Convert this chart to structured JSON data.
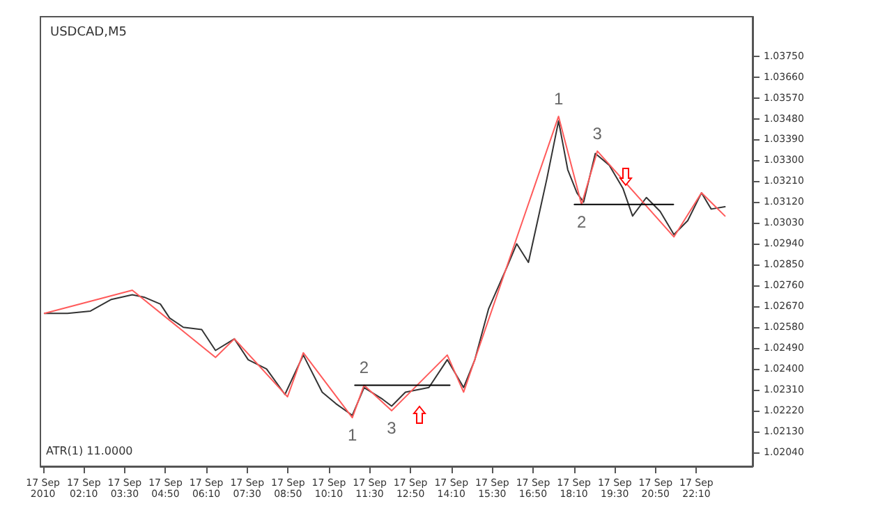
{
  "chart_data": {
    "type": "line",
    "title": "USDCAD,M5",
    "x": [
      "2010-09-17T00:53",
      "2010-09-17T01:38",
      "2010-09-17T02:23",
      "2010-09-17T03:04",
      "2010-09-17T03:45",
      "2010-09-17T04:08",
      "2010-09-17T04:40",
      "2010-09-17T04:58",
      "2010-09-17T05:25",
      "2010-09-17T06:01",
      "2010-09-17T06:28",
      "2010-09-17T07:05",
      "2010-09-17T07:32",
      "2010-09-17T08:08",
      "2010-09-17T08:44",
      "2010-09-17T09:20",
      "2010-09-17T09:57",
      "2010-09-17T10:24",
      "2010-09-17T10:56",
      "2010-09-17T11:19",
      "2010-09-17T11:55",
      "2010-09-17T12:13",
      "2010-09-17T12:40",
      "2010-09-17T13:26",
      "2010-09-17T14:02",
      "2010-09-17T14:34",
      "2010-09-17T14:56",
      "2010-09-17T15:23",
      "2010-09-17T15:59",
      "2010-09-17T16:18",
      "2010-09-17T16:41",
      "2010-09-17T17:03",
      "2010-09-17T17:17",
      "2010-09-17T17:40",
      "2010-09-17T17:58",
      "2010-09-17T18:16",
      "2010-09-17T18:29",
      "2010-09-17T18:52",
      "2010-09-17T19:19",
      "2010-09-17T19:46",
      "2010-09-17T20:05",
      "2010-09-17T20:32",
      "2010-09-17T20:59",
      "2010-09-17T21:26",
      "2010-09-17T21:53",
      "2010-09-17T22:20",
      "2010-09-17T22:39",
      "2010-09-17T23:06"
    ],
    "series": [
      {
        "color": "#333333",
        "values": [
          1.0264,
          1.0264,
          1.0265,
          1.027,
          1.0272,
          1.0271,
          1.0268,
          1.0262,
          1.0258,
          1.0257,
          1.0248,
          1.0253,
          1.0244,
          1.024,
          1.0229,
          1.0246,
          1.023,
          1.0225,
          1.022,
          1.0232,
          1.0227,
          1.0224,
          1.023,
          1.0232,
          1.0244,
          1.0232,
          1.0244,
          1.0266,
          1.0284,
          1.0294,
          1.0286,
          1.0308,
          1.0322,
          1.0347,
          1.0326,
          1.0316,
          1.0312,
          1.0333,
          1.0328,
          1.0318,
          1.0306,
          1.0314,
          1.0308,
          1.0298,
          1.0304,
          1.0316,
          1.0309,
          1.031
        ]
      },
      {
        "color": "#ff5a5a",
        "x": [
          "2010-09-17T00:53",
          "2010-09-17T03:45",
          "2010-09-17T06:28",
          "2010-09-17T07:05",
          "2010-09-17T08:49",
          "2010-09-17T09:20",
          "2010-09-17T10:56",
          "2010-09-17T11:19",
          "2010-09-17T12:13",
          "2010-09-17T14:02",
          "2010-09-17T14:34",
          "2010-09-17T17:40",
          "2010-09-17T18:25",
          "2010-09-17T18:56",
          "2010-09-17T21:26",
          "2010-09-17T22:20",
          "2010-09-17T23:06"
        ],
        "values": [
          1.0264,
          1.0274,
          1.0245,
          1.0253,
          1.0228,
          1.0247,
          1.0219,
          1.0233,
          1.0222,
          1.0246,
          1.023,
          1.0349,
          1.0311,
          1.0334,
          1.0297,
          1.0316,
          1.0306
        ]
      },
      {
        "color": "#000000",
        "x": [
          "2010-09-17T11:01",
          "2010-09-17T14:07"
        ],
        "values": [
          1.0233,
          1.0233
        ]
      },
      {
        "color": "#000000",
        "x": [
          "2010-09-17T18:11",
          "2010-09-17T21:25"
        ],
        "values": [
          1.0311,
          1.0311
        ]
      }
    ],
    "xlim": [
      "2010-09-17T00:45",
      "2010-09-18T00:00"
    ],
    "xticks": [
      {
        "value": "2010-09-17T00:50",
        "label": "17 Sep 2010"
      },
      {
        "value": "2010-09-17T02:10",
        "label": "17 Sep 02:10"
      },
      {
        "value": "2010-09-17T03:30",
        "label": "17 Sep 03:30"
      },
      {
        "value": "2010-09-17T04:50",
        "label": "17 Sep 04:50"
      },
      {
        "value": "2010-09-17T06:10",
        "label": "17 Sep 06:10"
      },
      {
        "value": "2010-09-17T07:30",
        "label": "17 Sep 07:30"
      },
      {
        "value": "2010-09-17T08:50",
        "label": "17 Sep 08:50"
      },
      {
        "value": "2010-09-17T10:10",
        "label": "17 Sep 10:10"
      },
      {
        "value": "2010-09-17T11:30",
        "label": "17 Sep 11:30"
      },
      {
        "value": "2010-09-17T12:50",
        "label": "17 Sep 12:50"
      },
      {
        "value": "2010-09-17T14:10",
        "label": "17 Sep 14:10"
      },
      {
        "value": "2010-09-17T15:30",
        "label": "17 Sep 15:30"
      },
      {
        "value": "2010-09-17T16:50",
        "label": "17 Sep 16:50"
      },
      {
        "value": "2010-09-17T18:10",
        "label": "17 Sep 18:10"
      },
      {
        "value": "2010-09-17T19:30",
        "label": "17 Sep 19:30"
      },
      {
        "value": "2010-09-17T20:50",
        "label": "17 Sep 20:50"
      },
      {
        "value": "2010-09-17T22:10",
        "label": "17 Sep 22:10"
      }
    ],
    "ylim": [
      1.0198,
      1.0392
    ],
    "yticks": [
      {
        "value": 1.0204,
        "label": "1.02040"
      },
      {
        "value": 1.0213,
        "label": "1.02130"
      },
      {
        "value": 1.0222,
        "label": "1.02220"
      },
      {
        "value": 1.0231,
        "label": "1.02310"
      },
      {
        "value": 1.024,
        "label": "1.02400"
      },
      {
        "value": 1.0249,
        "label": "1.02490"
      },
      {
        "value": 1.0258,
        "label": "1.02580"
      },
      {
        "value": 1.0267,
        "label": "1.02670"
      },
      {
        "value": 1.0276,
        "label": "1.02760"
      },
      {
        "value": 1.0285,
        "label": "1.02850"
      },
      {
        "value": 1.0294,
        "label": "1.02940"
      },
      {
        "value": 1.0303,
        "label": "1.03030"
      },
      {
        "value": 1.0312,
        "label": "1.03120"
      },
      {
        "value": 1.0321,
        "label": "1.03210"
      },
      {
        "value": 1.033,
        "label": "1.03300"
      },
      {
        "value": 1.0339,
        "label": "1.03390"
      },
      {
        "value": 1.0348,
        "label": "1.03480"
      },
      {
        "value": 1.0357,
        "label": "1.03570"
      },
      {
        "value": 1.0366,
        "label": "1.03660"
      },
      {
        "value": 1.0375,
        "label": "1.03750"
      }
    ],
    "annotations": [
      {
        "text": "1",
        "x": "2010-09-17T10:56",
        "y": 1.0219
      },
      {
        "text": "2",
        "x": "2010-09-17T11:19",
        "y": 1.0233
      },
      {
        "text": "3",
        "x": "2010-09-17T12:13",
        "y": 1.0222
      },
      {
        "text": "1",
        "x": "2010-09-17T17:40",
        "y": 1.0349
      },
      {
        "text": "3",
        "x": "2010-09-17T18:56",
        "y": 1.0334
      },
      {
        "text": "2",
        "x": "2010-09-17T18:25",
        "y": 1.0311
      },
      "ATR(1) 11.0000"
    ],
    "grid": false,
    "marker": "none",
    "line_style": "solid"
  }
}
